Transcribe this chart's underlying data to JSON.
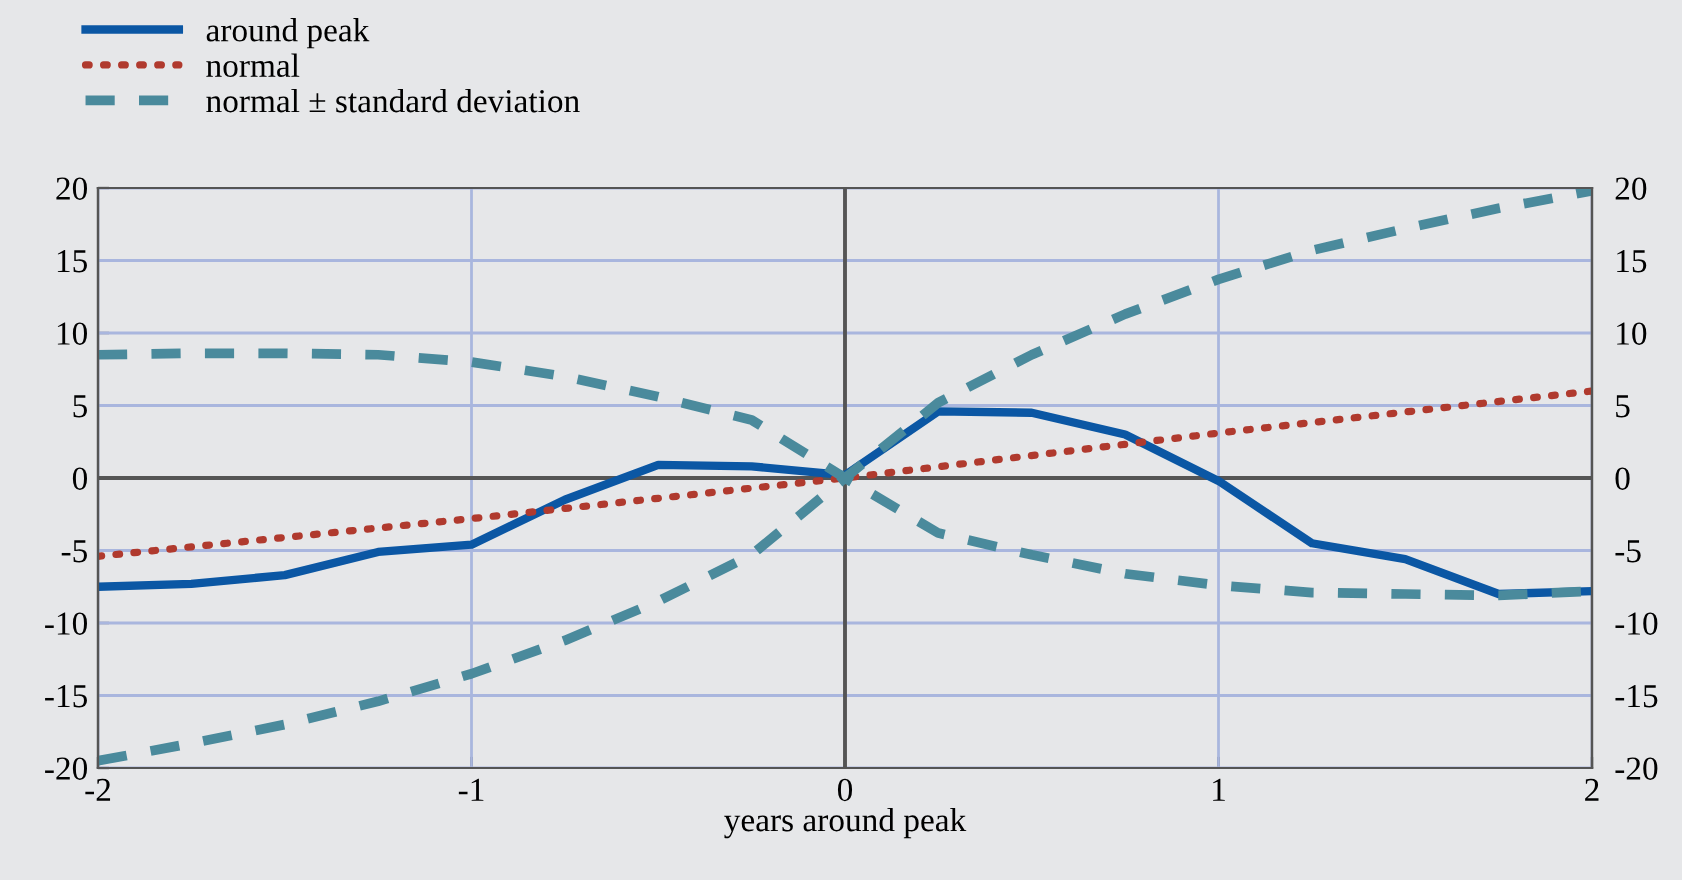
{
  "chart_data": {
    "type": "line",
    "xlabel": "years around peak",
    "legend": "top left",
    "grid": true,
    "xlim": [
      -2,
      2
    ],
    "xticks": [
      -2,
      -1,
      0,
      1,
      2
    ],
    "ylim": [
      -20,
      20
    ],
    "yticks": [
      -20,
      -15,
      -10,
      -5,
      0,
      5,
      10,
      15,
      20
    ],
    "y2lim": [
      -20,
      20
    ],
    "y2ticks": [
      -20,
      -15,
      -10,
      -5,
      0,
      5,
      10,
      15,
      20
    ],
    "series": [
      {
        "name": "around peak",
        "color": "#0b57a4",
        "line_style": "solid",
        "x": [
          -2,
          -1.75,
          -1.5,
          -1.25,
          -1,
          -0.75,
          -0.5,
          -0.25,
          0,
          0.25,
          0.5,
          0.75,
          1,
          1.25,
          1.5,
          1.75,
          2
        ],
        "values": [
          -7.5,
          -7.3,
          -6.7,
          -5.1,
          -4.6,
          -1.5,
          0.9,
          0.8,
          0.2,
          4.6,
          4.5,
          3.0,
          -0.2,
          -4.5,
          -5.6,
          -8.0,
          -7.8
        ]
      },
      {
        "name": "normal",
        "color": "#b03a2e",
        "line_style": "dotted",
        "x": [
          -2,
          -1,
          0,
          1,
          2
        ],
        "values": [
          -5.4,
          -2.8,
          0,
          3.1,
          6.0
        ]
      },
      {
        "name": "normal ± standard deviation",
        "color": "#4a8a9c",
        "line_style": "dashed",
        "x": [
          -2,
          -1.75,
          -1.5,
          -1.25,
          -1,
          -0.75,
          -0.5,
          -0.25,
          0,
          0.25,
          0.5,
          0.75,
          1,
          1.25,
          1.5,
          1.75,
          2
        ],
        "values": [
          8.5,
          8.6,
          8.6,
          8.5,
          8.0,
          7.0,
          5.6,
          4.0,
          0,
          -3.8,
          -5.3,
          -6.6,
          -7.4,
          -7.9,
          -8.0,
          -8.1,
          -7.8
        ]
      },
      {
        "color": "#4a8a9c",
        "line_style": "dashed",
        "x": [
          -2,
          -1.75,
          -1.5,
          -1.25,
          -1,
          -0.75,
          -0.5,
          -0.25,
          0,
          0.25,
          0.5,
          0.75,
          1,
          1.25,
          1.5,
          1.75,
          2
        ],
        "values": [
          -19.5,
          -18.3,
          -17.0,
          -15.4,
          -13.5,
          -11.2,
          -8.5,
          -5.3,
          0,
          5.2,
          8.5,
          11.3,
          13.7,
          15.7,
          17.2,
          18.6,
          19.8
        ]
      }
    ]
  }
}
